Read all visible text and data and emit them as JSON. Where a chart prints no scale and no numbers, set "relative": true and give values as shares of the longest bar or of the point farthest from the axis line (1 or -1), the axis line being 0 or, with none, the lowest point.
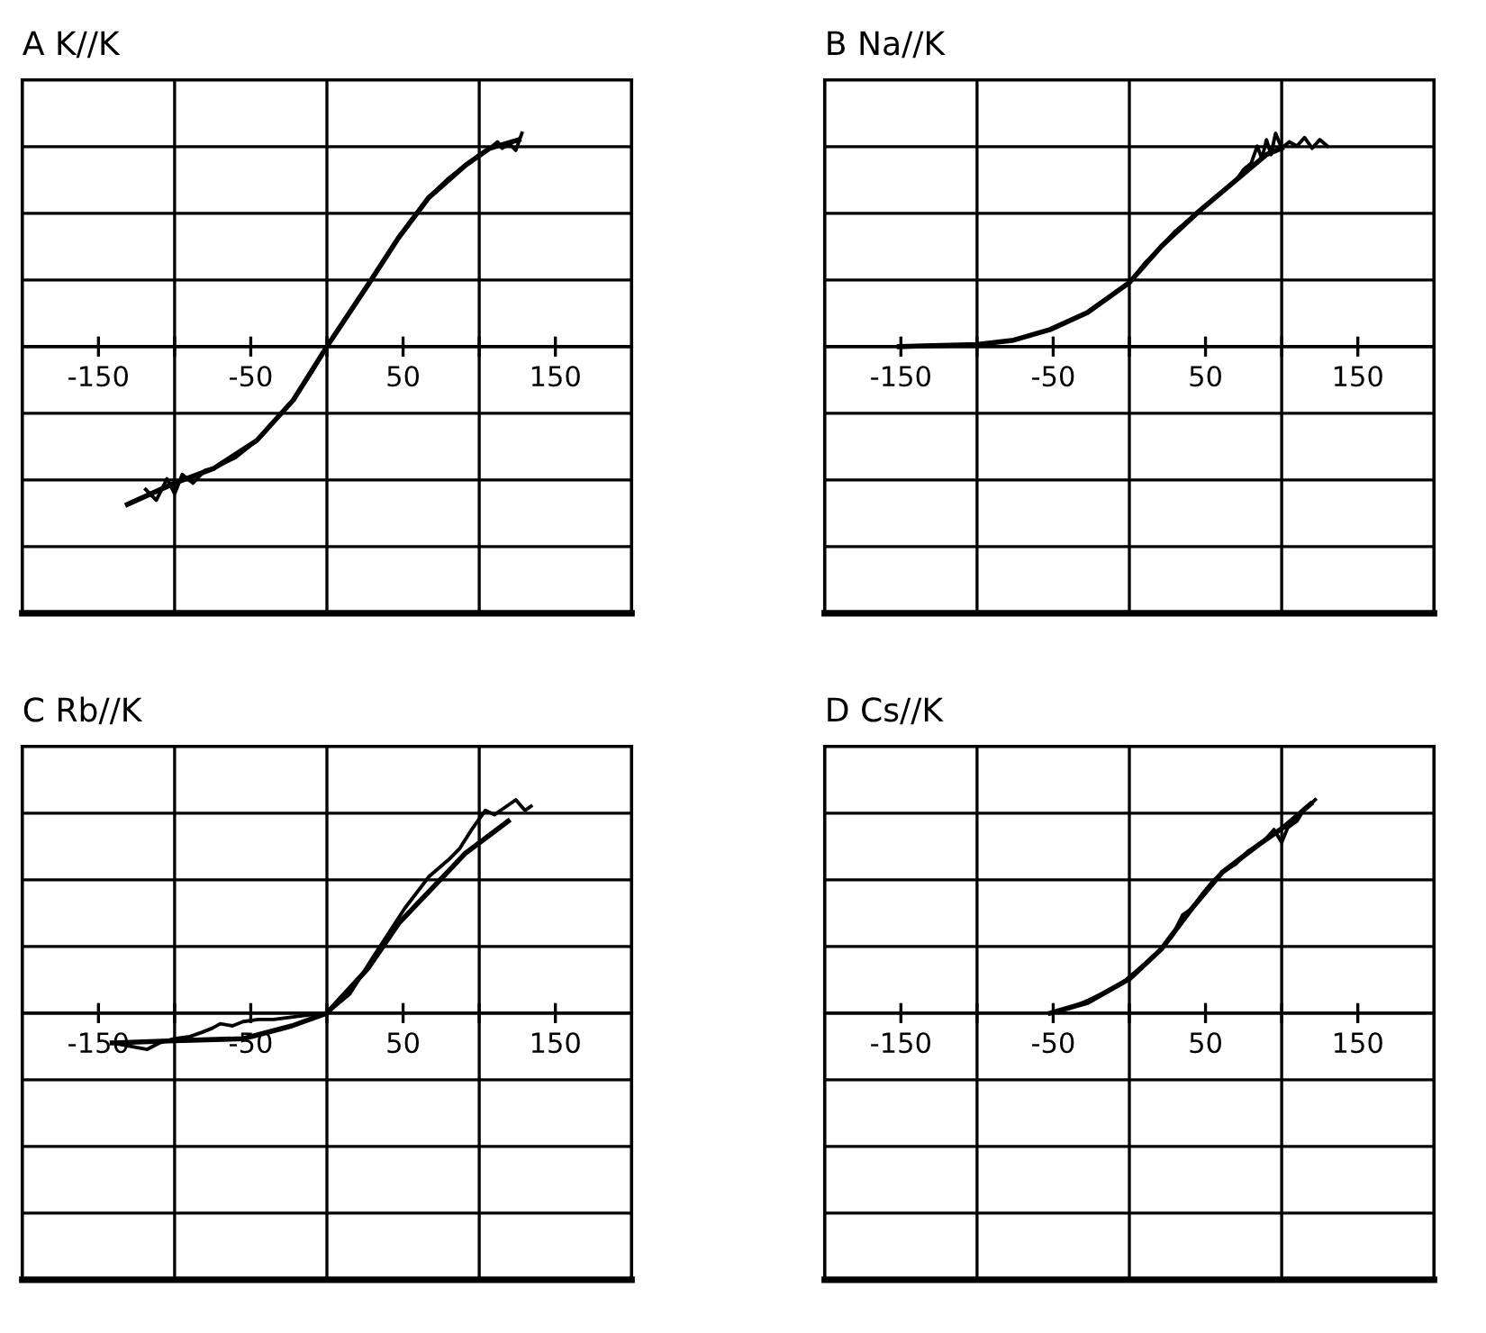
{
  "chart_data": [
    {
      "type": "line",
      "title": "A K//K",
      "relative": true,
      "grid": true,
      "marker": "none",
      "line_style": "solid",
      "xlim": [
        -200,
        200
      ],
      "xticks": [
        -150,
        {
          "value": -100,
          "label": null
        },
        -50,
        {
          "value": 0,
          "label": null
        },
        50,
        {
          "value": 100,
          "label": null
        },
        150
      ],
      "series": [
        {
          "color": "#000000",
          "x": [
            -131,
            -100,
            -74,
            -46,
            -22,
            0,
            27,
            47,
            67,
            91,
            107,
            126
          ],
          "values": [
            -0.74,
            -0.64,
            -0.57,
            -0.44,
            -0.25,
            0,
            0.29,
            0.51,
            0.7,
            0.85,
            0.93,
            0.97
          ]
        },
        {
          "color": "#000000",
          "x": [
            -119,
            -112,
            -105,
            -100,
            -95,
            -88,
            -80,
            -74,
            -60,
            -46,
            -30,
            -22,
            -10,
            0,
            15,
            27,
            40,
            47,
            55,
            67,
            80,
            91,
            100,
            107,
            112,
            115,
            120,
            124,
            128
          ],
          "values": [
            -0.67,
            -0.72,
            -0.62,
            -0.69,
            -0.6,
            -0.64,
            -0.58,
            -0.57,
            -0.52,
            -0.44,
            -0.31,
            -0.25,
            -0.12,
            0,
            0.16,
            0.29,
            0.43,
            0.51,
            0.59,
            0.7,
            0.79,
            0.85,
            0.9,
            0.93,
            0.96,
            0.93,
            0.95,
            0.92,
            1.0
          ]
        }
      ]
    },
    {
      "type": "line",
      "title": "B Na//K",
      "relative": true,
      "grid": true,
      "marker": "none",
      "line_style": "solid",
      "xlim": [
        -200,
        200
      ],
      "xticks": [
        -150,
        {
          "value": -100,
          "label": null
        },
        -50,
        {
          "value": 0,
          "label": null
        },
        50,
        {
          "value": 100,
          "label": null
        },
        150
      ],
      "series": [
        {
          "color": "#000000",
          "x": [
            -151,
            -100,
            -76,
            -52,
            -27.5,
            0,
            21,
            45,
            70,
            90,
            100
          ],
          "values": [
            0,
            0.01,
            0.03,
            0.08,
            0.16,
            0.3,
            0.47,
            0.63,
            0.78,
            0.9,
            0.93
          ]
        },
        {
          "color": "#000000",
          "x": [
            -40,
            -30,
            -20,
            -10,
            0,
            10,
            21,
            30,
            40,
            50,
            60,
            70,
            75,
            80,
            84,
            87,
            90,
            93,
            96,
            100,
            105,
            110,
            115,
            120,
            125,
            130
          ],
          "values": [
            0.12,
            0.15,
            0.2,
            0.25,
            0.3,
            0.39,
            0.47,
            0.54,
            0.6,
            0.66,
            0.72,
            0.78,
            0.83,
            0.86,
            0.94,
            0.88,
            0.97,
            0.9,
            1.0,
            0.93,
            0.96,
            0.94,
            0.98,
            0.93,
            0.97,
            0.94
          ]
        }
      ]
    },
    {
      "type": "line",
      "title": "C Rb//K",
      "relative": true,
      "grid": true,
      "marker": "none",
      "line_style": "solid",
      "xlim": [
        -200,
        200
      ],
      "xticks": [
        -150,
        {
          "value": -100,
          "label": null
        },
        -50,
        {
          "value": 0,
          "label": null
        },
        50,
        {
          "value": 100,
          "label": null
        },
        150
      ],
      "series": [
        {
          "color": "#000000",
          "x": [
            -141,
            -100,
            -55,
            -23,
            0,
            27,
            47,
            67,
            91,
            119
          ],
          "values": [
            -0.14,
            -0.13,
            -0.12,
            -0.06,
            0,
            0.21,
            0.42,
            0.57,
            0.75,
            0.9
          ]
        },
        {
          "color": "#000000",
          "x": [
            -141,
            -118,
            -110,
            -100,
            -90,
            -82,
            -75,
            -70,
            -62,
            -55,
            -45,
            -35,
            -13,
            0,
            15,
            31,
            51,
            67,
            80,
            87,
            95,
            104,
            110,
            116,
            124,
            130,
            134
          ],
          "values": [
            -0.14,
            -0.17,
            -0.14,
            -0.12,
            -0.11,
            -0.09,
            -0.07,
            -0.05,
            -0.06,
            -0.04,
            -0.03,
            -0.03,
            -0.01,
            0,
            0.09,
            0.27,
            0.49,
            0.64,
            0.72,
            0.77,
            0.86,
            0.95,
            0.93,
            0.96,
            1.0,
            0.95,
            0.97
          ]
        }
      ]
    },
    {
      "type": "line",
      "title": "D Cs//K",
      "relative": true,
      "grid": true,
      "marker": "none",
      "line_style": "solid",
      "xlim": [
        -200,
        200
      ],
      "xticks": [
        -150,
        {
          "value": -100,
          "label": null
        },
        -50,
        {
          "value": 0,
          "label": null
        },
        50,
        {
          "value": 100,
          "label": null
        },
        150
      ],
      "series": [
        {
          "color": "#000000",
          "x": [
            -52,
            -27.5,
            0,
            21,
            41,
            61,
            85,
            101,
            119
          ],
          "values": [
            0,
            0.05,
            0.16,
            0.3,
            0.49,
            0.66,
            0.79,
            0.87,
            0.98
          ]
        },
        {
          "color": "#000000",
          "x": [
            -40,
            -27,
            -15,
            -5,
            5,
            15,
            21,
            28,
            35,
            41,
            48,
            55,
            61,
            70,
            78,
            85,
            90,
            95,
            100,
            104,
            110,
            115,
            119,
            122
          ],
          "values": [
            0.02,
            0.06,
            0.1,
            0.14,
            0.2,
            0.26,
            0.3,
            0.36,
            0.46,
            0.49,
            0.56,
            0.62,
            0.66,
            0.7,
            0.76,
            0.79,
            0.82,
            0.86,
            0.8,
            0.87,
            0.9,
            0.96,
            0.98,
            1.0
          ]
        }
      ]
    }
  ]
}
